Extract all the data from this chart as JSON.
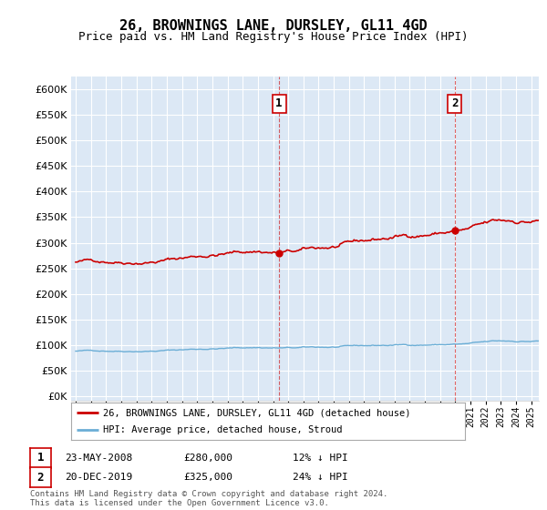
{
  "title": "26, BROWNINGS LANE, DURSLEY, GL11 4GD",
  "subtitle": "Price paid vs. HM Land Registry's House Price Index (HPI)",
  "yticks": [
    0,
    50000,
    100000,
    150000,
    200000,
    250000,
    300000,
    350000,
    400000,
    450000,
    500000,
    550000,
    600000
  ],
  "xlim_start": 1994.7,
  "xlim_end": 2025.5,
  "ylim": [
    -8000,
    625000
  ],
  "bg_color": "#dce8f5",
  "grid_color": "#ffffff",
  "hpi_color": "#6baed6",
  "price_color": "#cc0000",
  "transaction1_date": 2008.39,
  "transaction1_price": 280000,
  "transaction2_date": 2019.96,
  "transaction2_price": 325000,
  "legend_house_label": "26, BROWNINGS LANE, DURSLEY, GL11 4GD (detached house)",
  "legend_hpi_label": "HPI: Average price, detached house, Stroud",
  "ann1_date": "23-MAY-2008",
  "ann1_price": "£280,000",
  "ann1_hpi": "12% ↓ HPI",
  "ann2_date": "20-DEC-2019",
  "ann2_price": "£325,000",
  "ann2_hpi": "24% ↓ HPI",
  "footer": "Contains HM Land Registry data © Crown copyright and database right 2024.\nThis data is licensed under the Open Government Licence v3.0."
}
